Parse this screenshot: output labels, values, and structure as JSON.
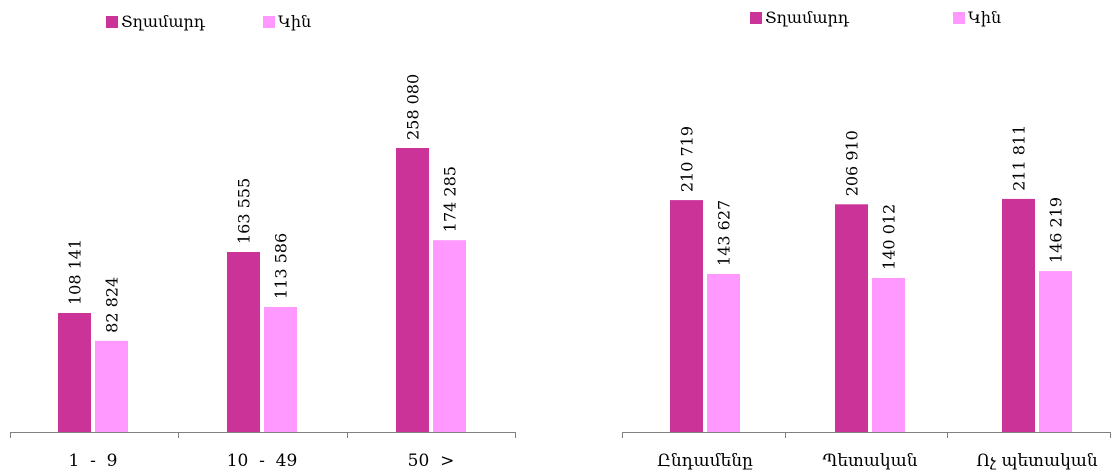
{
  "colors": {
    "male": "#cc3399",
    "female": "#ff99ff",
    "axis": "#808080"
  },
  "chart_data": [
    {
      "type": "bar",
      "title": "",
      "xlabel": "",
      "ylabel": "",
      "ylim": [
        0,
        300000
      ],
      "grid": false,
      "legend": "top",
      "categories": [
        "1  -  9",
        "10  -  49",
        "50  >"
      ],
      "series": [
        {
          "name": "Տղամարդ",
          "values": [
            108141,
            163555,
            258080
          ],
          "labels": [
            "108 141",
            "163 555",
            "258 080"
          ]
        },
        {
          "name": "Կին",
          "values": [
            82824,
            113586,
            174285
          ],
          "labels": [
            "82 824",
            "113 586",
            "174 285"
          ]
        }
      ]
    },
    {
      "type": "bar",
      "title": "",
      "xlabel": "",
      "ylabel": "",
      "ylim": [
        0,
        300000
      ],
      "grid": false,
      "legend": "top",
      "categories": [
        "Ընդամենը",
        "Պետական",
        "Ոչ պետական"
      ],
      "series": [
        {
          "name": "Տղամարդ",
          "values": [
            210719,
            206910,
            211811
          ],
          "labels": [
            "210 719",
            "206 910",
            "211 811"
          ]
        },
        {
          "name": "Կին",
          "values": [
            143627,
            140012,
            146219
          ],
          "labels": [
            "143 627",
            "140 012",
            "146 219"
          ]
        }
      ]
    }
  ]
}
